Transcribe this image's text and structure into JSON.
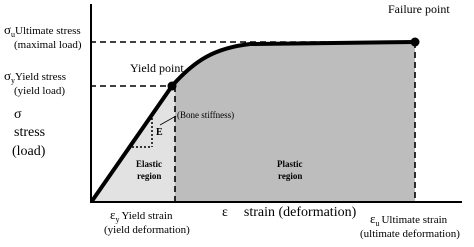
{
  "y_labels": {
    "ultimate": {
      "symbol": "σ",
      "subscript": "u",
      "label": "Ultimate stress",
      "note": "(maximal load)"
    },
    "yield": {
      "symbol": "σ",
      "subscript": "y",
      "label": "Yield stress",
      "note": "(yield load)"
    },
    "axis": {
      "symbol": "σ",
      "label": "stress",
      "note": "(load)"
    }
  },
  "x_labels": {
    "yield": {
      "symbol": "ε",
      "subscript": "y",
      "label": "Yield strain",
      "note": "(yield deformation)"
    },
    "axis": {
      "symbol": "ε",
      "label": "strain (deformation)"
    },
    "ultimate": {
      "symbol": "ε",
      "subscript": "u",
      "label": "Ultimate strain",
      "note": "(ultimate deformation)"
    }
  },
  "annotations": {
    "yield_point": "Yield point",
    "failure_point": "Failure point",
    "stiffness": "(Bone stiffness)",
    "modulus": "E",
    "elastic": [
      "Elastic",
      "region"
    ],
    "plastic": [
      "Plastic",
      "region"
    ]
  }
}
